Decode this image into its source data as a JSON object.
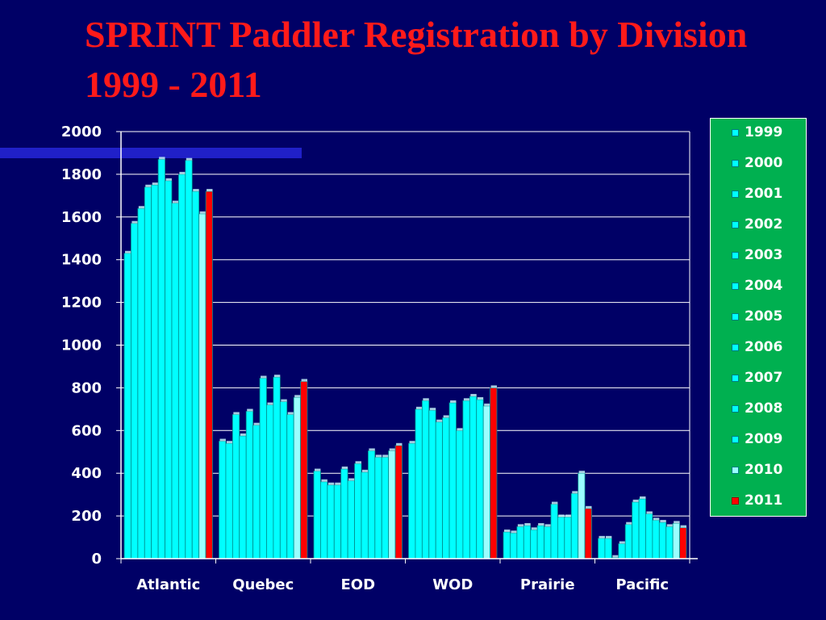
{
  "slide": {
    "title": "SPRINT Paddler Registration by Division 1999 - 2011"
  },
  "colors": {
    "background": "#000066",
    "title": "#ff1a1a",
    "bar": "#00ffff",
    "bar_2010": "#99ffff",
    "bar_2011": "#ff0000",
    "legend_bg": "#00b050",
    "accent_bar": "#2020c8"
  },
  "chart_data": {
    "type": "bar",
    "title": "",
    "xlabel": "",
    "ylabel": "",
    "ylim": [
      0,
      2000
    ],
    "yticks": [
      0,
      200,
      400,
      600,
      800,
      1000,
      1200,
      1400,
      1600,
      1800,
      2000
    ],
    "grid": true,
    "legend_position": "right",
    "categories": [
      "Atlantic",
      "Quebec",
      "EOD",
      "WOD",
      "Prairie",
      "Pacific"
    ],
    "series": [
      {
        "name": "1999",
        "values": [
          1430,
          550,
          410,
          540,
          125,
          95
        ]
      },
      {
        "name": "2000",
        "values": [
          1570,
          540,
          360,
          700,
          120,
          95
        ]
      },
      {
        "name": "2001",
        "values": [
          1640,
          675,
          345,
          740,
          150,
          5
        ]
      },
      {
        "name": "2002",
        "values": [
          1740,
          575,
          345,
          695,
          155,
          70
        ]
      },
      {
        "name": "2003",
        "values": [
          1750,
          690,
          420,
          640,
          135,
          160
        ]
      },
      {
        "name": "2004",
        "values": [
          1870,
          625,
          365,
          660,
          155,
          265
        ]
      },
      {
        "name": "2005",
        "values": [
          1770,
          845,
          445,
          730,
          150,
          280
        ]
      },
      {
        "name": "2006",
        "values": [
          1665,
          720,
          405,
          600,
          255,
          210
        ]
      },
      {
        "name": "2007",
        "values": [
          1800,
          850,
          505,
          740,
          195,
          180
        ]
      },
      {
        "name": "2008",
        "values": [
          1865,
          735,
          475,
          760,
          195,
          170
        ]
      },
      {
        "name": "2009",
        "values": [
          1720,
          675,
          475,
          745,
          305,
          150
        ]
      },
      {
        "name": "2010",
        "values": [
          1615,
          755,
          505,
          715,
          400,
          165
        ]
      },
      {
        "name": "2011",
        "values": [
          1720,
          830,
          530,
          800,
          235,
          145
        ]
      }
    ]
  }
}
